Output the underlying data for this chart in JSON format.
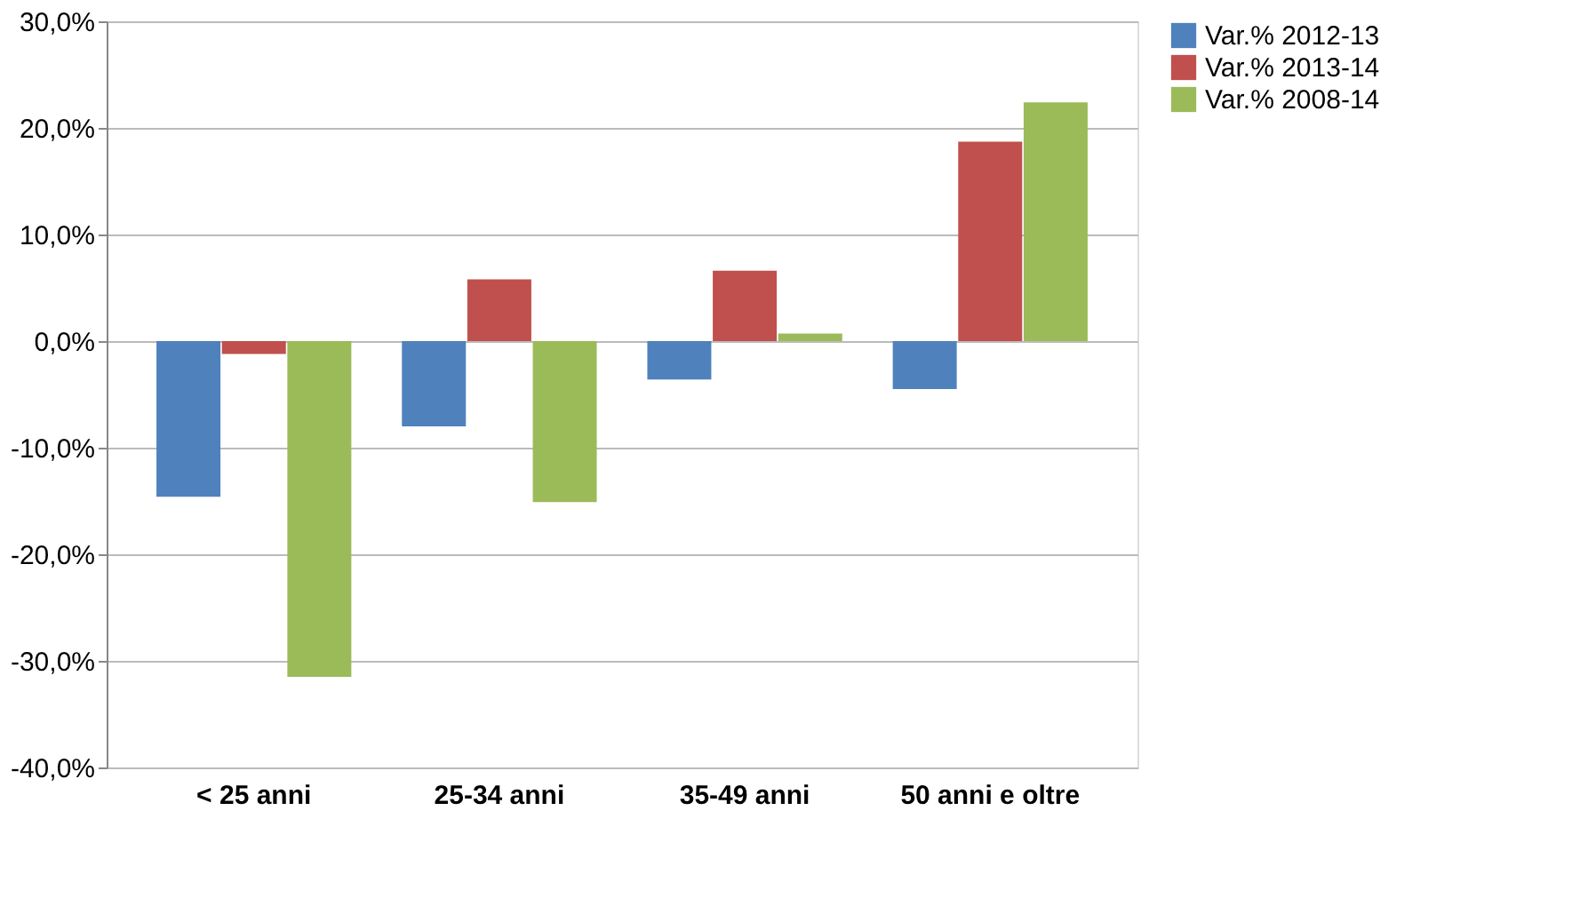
{
  "chart_data": {
    "type": "bar",
    "categories": [
      "< 25 anni",
      "25-34 anni",
      "35-49 anni",
      "50 anni e oltre"
    ],
    "series": [
      {
        "name": "Var.% 2012-13",
        "color": "#4f81bd",
        "values": [
          -14.6,
          -8.0,
          -3.6,
          -4.5
        ]
      },
      {
        "name": "Var.% 2013-14",
        "color": "#c0504d",
        "values": [
          -1.2,
          5.8,
          6.6,
          18.7
        ]
      },
      {
        "name": "Var.% 2008-14",
        "color": "#9bbb59",
        "values": [
          -31.5,
          -15.1,
          0.7,
          22.4
        ]
      }
    ],
    "ylim": [
      -40,
      30
    ],
    "yticks": [
      {
        "value": -40,
        "label": "-40,0%"
      },
      {
        "value": -30,
        "label": "-30,0%"
      },
      {
        "value": -20,
        "label": "-20,0%"
      },
      {
        "value": -10,
        "label": "-10,0%"
      },
      {
        "value": 0,
        "label": "0,0%"
      },
      {
        "value": 10,
        "label": "10,0%"
      },
      {
        "value": 20,
        "label": "20,0%"
      },
      {
        "value": 30,
        "label": "30,0%"
      }
    ],
    "grid": "y",
    "legend": "right"
  }
}
